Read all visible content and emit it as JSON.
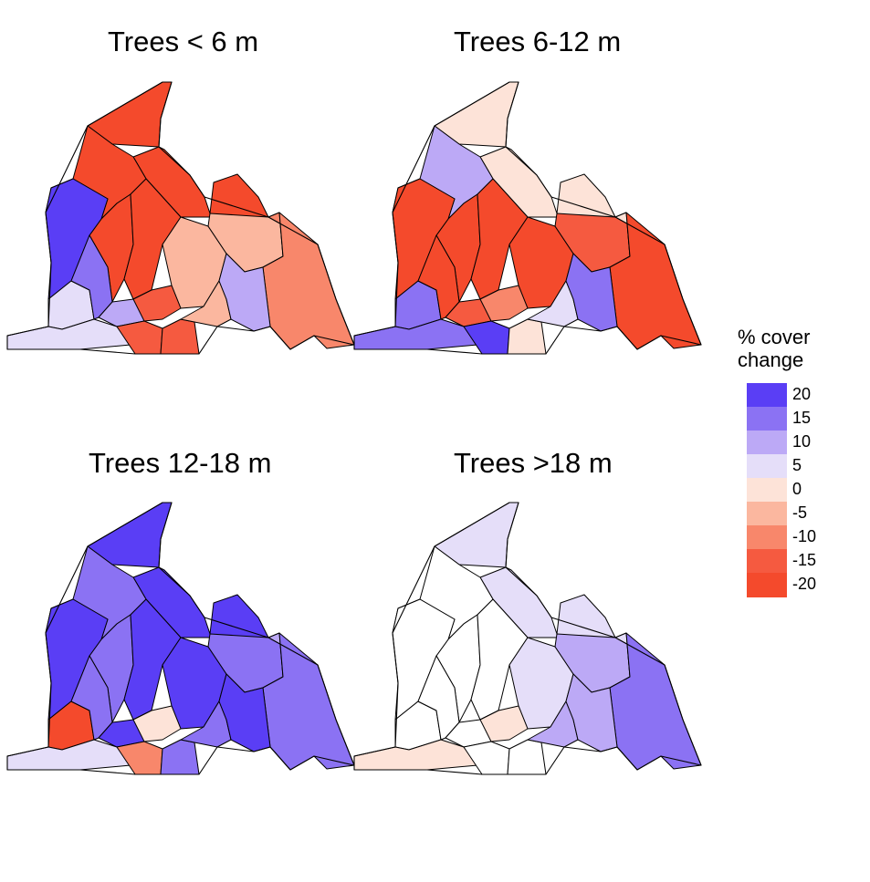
{
  "panels": [
    {
      "title": "Trees < 6 m",
      "regions": [
        {
          "id": "north-strip",
          "value": -20
        },
        {
          "id": "upper-east",
          "value": -20
        },
        {
          "id": "west-box",
          "value": 10
        },
        {
          "id": "west-mid",
          "value": -15
        },
        {
          "id": "west-band",
          "value": -20
        },
        {
          "id": "central-west",
          "value": -20
        },
        {
          "id": "center-a",
          "value": -20
        },
        {
          "id": "center-b",
          "value": -5
        },
        {
          "id": "center-c",
          "value": -5
        },
        {
          "id": "east-big",
          "value": -10
        },
        {
          "id": "east-arm",
          "value": -10
        },
        {
          "id": "far-west",
          "value": 20
        },
        {
          "id": "sw-a",
          "value": 5
        },
        {
          "id": "sw-b",
          "value": 15
        },
        {
          "id": "sw-c",
          "value": 10
        },
        {
          "id": "south-a",
          "value": 5
        },
        {
          "id": "south-b",
          "value": -15
        },
        {
          "id": "south-c",
          "value": -15
        },
        {
          "id": "south-d",
          "value": -5
        },
        {
          "id": "mid-a",
          "value": -15
        },
        {
          "id": "mid-b",
          "value": 10
        }
      ]
    },
    {
      "title": "Trees 6-12 m",
      "regions": [
        {
          "id": "north-strip",
          "value": 0
        },
        {
          "id": "upper-east",
          "value": 0
        },
        {
          "id": "west-box",
          "value": -20
        },
        {
          "id": "west-mid",
          "value": 5
        },
        {
          "id": "west-band",
          "value": 10
        },
        {
          "id": "central-west",
          "value": -20
        },
        {
          "id": "center-a",
          "value": -20
        },
        {
          "id": "center-b",
          "value": -20
        },
        {
          "id": "center-c",
          "value": -15
        },
        {
          "id": "east-big",
          "value": 0
        },
        {
          "id": "east-arm",
          "value": -20
        },
        {
          "id": "far-west",
          "value": -20
        },
        {
          "id": "sw-a",
          "value": 15
        },
        {
          "id": "sw-b",
          "value": -20
        },
        {
          "id": "sw-c",
          "value": -15
        },
        {
          "id": "south-a",
          "value": 15
        },
        {
          "id": "south-b",
          "value": 20
        },
        {
          "id": "south-c",
          "value": 0
        },
        {
          "id": "south-d",
          "value": 5
        },
        {
          "id": "mid-a",
          "value": -10
        },
        {
          "id": "mid-b",
          "value": 15
        }
      ]
    },
    {
      "title": "Trees 12-18 m",
      "regions": [
        {
          "id": "north-strip",
          "value": 20
        },
        {
          "id": "upper-east",
          "value": 20
        },
        {
          "id": "west-box",
          "value": 15
        },
        {
          "id": "west-mid",
          "value": null
        },
        {
          "id": "west-band",
          "value": 15
        },
        {
          "id": "central-west",
          "value": 15
        },
        {
          "id": "center-a",
          "value": 20
        },
        {
          "id": "center-b",
          "value": 20
        },
        {
          "id": "center-c",
          "value": 15
        },
        {
          "id": "east-big",
          "value": 10
        },
        {
          "id": "east-arm",
          "value": 15
        },
        {
          "id": "far-west",
          "value": 20
        },
        {
          "id": "sw-a",
          "value": -20
        },
        {
          "id": "sw-b",
          "value": 15
        },
        {
          "id": "sw-c",
          "value": 20
        },
        {
          "id": "south-a",
          "value": 5
        },
        {
          "id": "south-b",
          "value": -10
        },
        {
          "id": "south-c",
          "value": 15
        },
        {
          "id": "south-d",
          "value": 15
        },
        {
          "id": "mid-a",
          "value": 0
        },
        {
          "id": "mid-b",
          "value": 20
        }
      ]
    },
    {
      "title": "Trees >18 m",
      "regions": [
        {
          "id": "north-strip",
          "value": 5
        },
        {
          "id": "upper-east",
          "value": 5
        },
        {
          "id": "west-box",
          "value": null
        },
        {
          "id": "west-mid",
          "value": null
        },
        {
          "id": "west-band",
          "value": null
        },
        {
          "id": "central-west",
          "value": null
        },
        {
          "id": "center-a",
          "value": null
        },
        {
          "id": "center-b",
          "value": 5
        },
        {
          "id": "center-c",
          "value": 10
        },
        {
          "id": "east-big",
          "value": 5
        },
        {
          "id": "east-arm",
          "value": 15
        },
        {
          "id": "far-west",
          "value": null
        },
        {
          "id": "sw-a",
          "value": null
        },
        {
          "id": "sw-b",
          "value": null
        },
        {
          "id": "sw-c",
          "value": null
        },
        {
          "id": "south-a",
          "value": 0
        },
        {
          "id": "south-b",
          "value": null
        },
        {
          "id": "south-c",
          "value": null
        },
        {
          "id": "south-d",
          "value": 10
        },
        {
          "id": "mid-a",
          "value": 0
        },
        {
          "id": "mid-b",
          "value": 10
        }
      ]
    }
  ],
  "legend": {
    "title_line1": "% cover",
    "title_line2": "change",
    "items": [
      {
        "label": "20",
        "color": "#5a3ef5"
      },
      {
        "label": "15",
        "color": "#8b72f3"
      },
      {
        "label": "10",
        "color": "#bca9f6"
      },
      {
        "label": "5",
        "color": "#e5def9"
      },
      {
        "label": "0",
        "color": "#fde3d8"
      },
      {
        "label": "-5",
        "color": "#fbb79f"
      },
      {
        "label": "-10",
        "color": "#f8876b"
      },
      {
        "label": "-15",
        "color": "#f55a40"
      },
      {
        "label": "-20",
        "color": "#f44a2c"
      }
    ],
    "no_data_color": "#ffffff"
  }
}
